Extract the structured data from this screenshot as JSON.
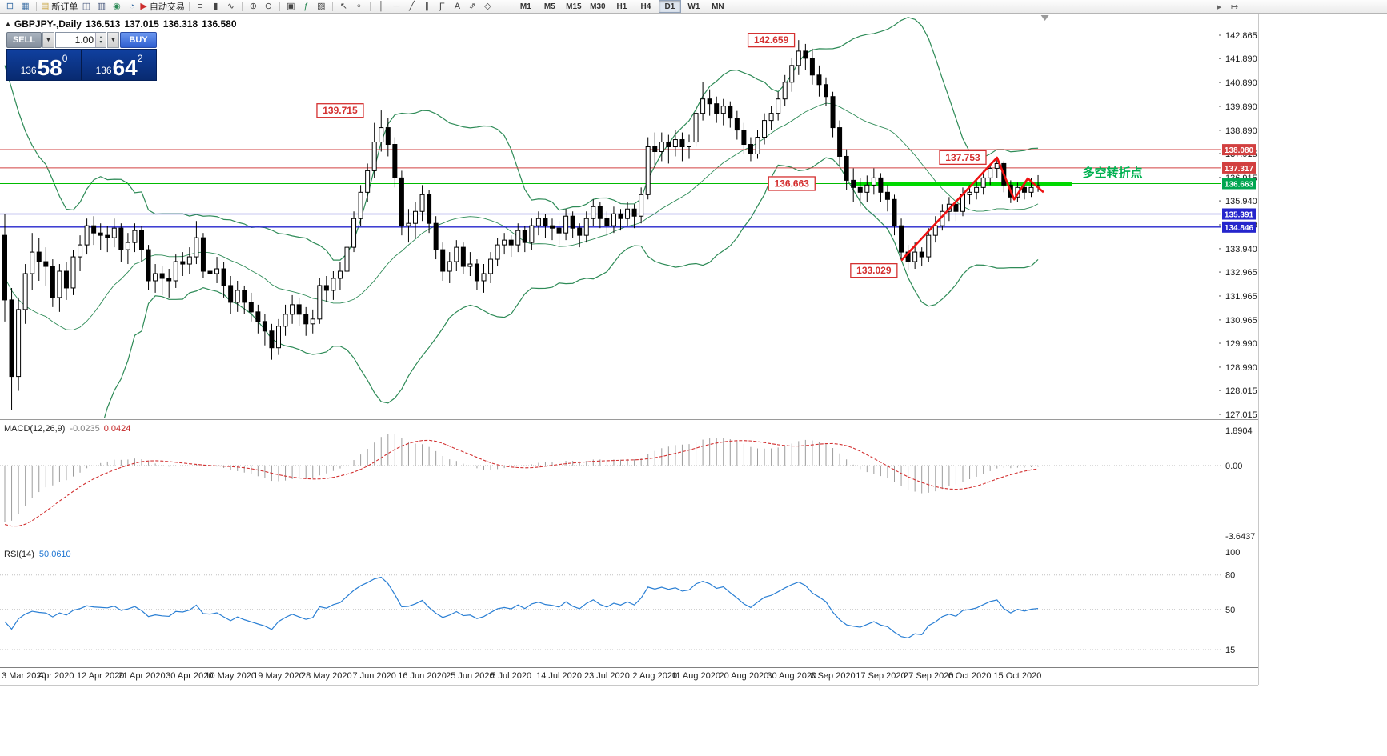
{
  "toolbar": {
    "items": [
      {
        "name": "new-chart-icon",
        "glyph": "⊞",
        "color": "#3a6ea5"
      },
      {
        "name": "chart-profiles-icon",
        "glyph": "▦",
        "color": "#3a6ea5"
      },
      {
        "sep": true
      },
      {
        "name": "new-order-button",
        "glyph": "▤",
        "color": "#c8a23c",
        "label": "新订单"
      },
      {
        "name": "market-watch-icon",
        "glyph": "◫",
        "color": "#44557a"
      },
      {
        "name": "data-window-icon",
        "glyph": "▥",
        "color": "#44557a"
      },
      {
        "name": "expert-advisors-icon",
        "glyph": "◉",
        "color": "#2e8b57"
      },
      {
        "name": "options-icon",
        "glyph": "◔",
        "color": "#3a6ea5"
      },
      {
        "name": "autotrading-button",
        "glyph": "▶",
        "color": "#cc2b2b",
        "label": "自动交易"
      },
      {
        "sep": true
      },
      {
        "name": "bar-chart-icon",
        "glyph": "≡",
        "color": "#444444"
      },
      {
        "name": "candlestick-chart-icon",
        "glyph": "▮",
        "color": "#444444"
      },
      {
        "name": "line-chart-icon",
        "glyph": "∿",
        "color": "#444444"
      },
      {
        "sep": true
      },
      {
        "name": "zoom-in-icon",
        "glyph": "⊕",
        "color": "#444444"
      },
      {
        "name": "zoom-out-icon",
        "glyph": "⊖",
        "color": "#444444"
      },
      {
        "sep": true
      },
      {
        "name": "tile-windows-icon",
        "glyph": "▣",
        "color": "#444444"
      },
      {
        "name": "indicators-icon",
        "glyph": "ƒ",
        "color": "#2e8b57"
      },
      {
        "name": "templates-icon",
        "glyph": "▨",
        "color": "#444444"
      },
      {
        "sep": true
      },
      {
        "name": "cursor-icon",
        "glyph": "↖",
        "color": "#444444"
      },
      {
        "name": "crosshair-icon",
        "glyph": "⌖",
        "color": "#444444"
      },
      {
        "sep": true
      },
      {
        "name": "vertical-line-icon",
        "glyph": "│",
        "color": "#444444"
      },
      {
        "name": "horizontal-line-icon",
        "glyph": "─",
        "color": "#444444"
      },
      {
        "name": "trendline-icon",
        "glyph": "╱",
        "color": "#444444"
      },
      {
        "name": "equidistant-channel-icon",
        "glyph": "∥",
        "color": "#444444"
      },
      {
        "name": "fibonacci-icon",
        "glyph": "Ƒ",
        "color": "#444444"
      },
      {
        "name": "text-icon",
        "glyph": "A",
        "color": "#444444"
      },
      {
        "name": "arrow-icon",
        "glyph": "⇗",
        "color": "#444444"
      },
      {
        "name": "shapes-icon",
        "glyph": "◇",
        "color": "#444444"
      },
      {
        "sep": true
      }
    ],
    "timeframes": [
      "M1",
      "M5",
      "M15",
      "M30",
      "H1",
      "H4",
      "D1",
      "W1",
      "MN"
    ],
    "active_timeframe": "D1",
    "right_items": [
      {
        "name": "auto-scroll-icon",
        "glyph": "▸",
        "color": "#666666"
      },
      {
        "name": "chart-shift-icon",
        "glyph": "↦",
        "color": "#666666"
      }
    ]
  },
  "chart_header": {
    "symbol_period": "GBPJPY-,Daily",
    "open": "136.513",
    "high": "137.015",
    "low": "136.318",
    "close": "136.580"
  },
  "one_click": {
    "sell_label": "SELL",
    "buy_label": "BUY",
    "lot": "1.00",
    "sell_small": "136",
    "sell_big": "58",
    "sell_sup": "0",
    "buy_small": "136",
    "buy_big": "64",
    "buy_sup": "2"
  },
  "indicators": {
    "macd_label": "MACD(12,26,9)",
    "macd_value": "-0.0235",
    "macd_signal_value": "0.0424",
    "rsi_label": "RSI(14)",
    "rsi_value": "50.0610"
  },
  "chart_data": {
    "type": "candlestick",
    "symbol": "GBPJPY",
    "period": "Daily",
    "styles": {
      "band_color": "#2e8b57",
      "trend_color": "#ee1111",
      "annotation_color": "#d43030",
      "macd_hist_color": "#9c9c9c",
      "macd_signal_color": "#d23030",
      "rsi_line_color": "#2a7fd4"
    },
    "y_axis_ticks": [
      "142.865",
      "141.890",
      "140.890",
      "139.890",
      "138.890",
      "137.915",
      "136.915",
      "135.940",
      "134.940",
      "133.940",
      "132.965",
      "131.965",
      "130.965",
      "129.990",
      "128.990",
      "128.015",
      "127.015"
    ],
    "price_levels": [
      {
        "label": "138.080",
        "price": 138.08,
        "color": "#d24040",
        "box": "#d24040",
        "width": 1.3
      },
      {
        "label": "137.317",
        "price": 137.317,
        "color": "#d24040",
        "box": "#d24040",
        "width": 1
      },
      {
        "label": "136.663",
        "price": 136.663,
        "color": "#00bb00",
        "box": "#00a650",
        "width": 1
      },
      {
        "label": "135.391",
        "price": 135.391,
        "color": "#2525cc",
        "box": "#2525cc",
        "width": 1.3
      },
      {
        "label": "134.846",
        "price": 134.846,
        "color": "#2525cc",
        "box": "#2525cc",
        "width": 1.3
      }
    ],
    "green_segment": {
      "price": 136.663,
      "from_idx": 124,
      "to_idx": 156,
      "color": "#00d800",
      "width": 5
    },
    "annotations": [
      {
        "text": "139.715",
        "idx": 49,
        "price": 139.715
      },
      {
        "text": "142.659",
        "idx": 112,
        "price": 142.659
      },
      {
        "text": "136.663",
        "idx": 115,
        "price": 136.663
      },
      {
        "text": "133.029",
        "idx": 127,
        "price": 133.029
      },
      {
        "text": "137.753",
        "idx": 140,
        "price": 137.753
      }
    ],
    "trend_polyline": [
      [
        131,
        133.45
      ],
      [
        145,
        137.75
      ],
      [
        147.5,
        136.0
      ],
      [
        149.5,
        136.88
      ],
      [
        151.8,
        136.3
      ]
    ],
    "cn_note": {
      "text": "多空转折点",
      "idx": 157.5,
      "price": 136.95,
      "color": "#00b050"
    },
    "shift_marker_idx": 152,
    "macd_axis": {
      "max": 1.8904,
      "min": -3.6437,
      "max_label": "1.8904",
      "zero_label": "0.00",
      "min_label": "-3.6437"
    },
    "rsi_axis": {
      "labels": [
        "100",
        "80",
        "50",
        "15"
      ],
      "levels": [
        80,
        50,
        15
      ]
    },
    "date_labels": [
      [
        0,
        "3 Mar 2020"
      ],
      [
        7,
        "1 Apr 2020"
      ],
      [
        14,
        "12 Apr 2020"
      ],
      [
        20,
        "21 Apr 2020"
      ],
      [
        27,
        "30 Apr 2020"
      ],
      [
        33,
        "10 May 2020"
      ],
      [
        40,
        "19 May 2020"
      ],
      [
        47,
        "28 May 2020"
      ],
      [
        54,
        "7 Jun 2020"
      ],
      [
        61,
        "16 Jun 2020"
      ],
      [
        68,
        "25 Jun 2020"
      ],
      [
        74,
        "5 Jul 2020"
      ],
      [
        81,
        "14 Jul 2020"
      ],
      [
        88,
        "23 Jul 2020"
      ],
      [
        95,
        "2 Aug 2020"
      ],
      [
        101,
        "11 Aug 2020"
      ],
      [
        108,
        "20 Aug 2020"
      ],
      [
        115,
        "30 Aug 2020"
      ],
      [
        121,
        "8 Sep 2020"
      ],
      [
        128,
        "17 Sep 2020"
      ],
      [
        135,
        "27 Sep 2020"
      ],
      [
        141,
        "6 Oct 2020"
      ],
      [
        148,
        "15 Oct 2020"
      ]
    ],
    "prehistory_closes": [
      140.0,
      139.6,
      139.0,
      138.2,
      137.4,
      136.4,
      135.4,
      136.2,
      136.6,
      135.4,
      133.8,
      131.8,
      129.8,
      128.0,
      126.6,
      126.0,
      127.5,
      129.0,
      128.3,
      128.0
    ],
    "candles": [
      [
        134.5,
        135.4,
        130.9,
        131.8
      ],
      [
        131.8,
        132.3,
        127.2,
        128.6
      ],
      [
        128.6,
        131.9,
        128.0,
        131.4
      ],
      [
        131.4,
        133.3,
        130.8,
        132.9
      ],
      [
        132.9,
        134.6,
        132.2,
        133.8
      ],
      [
        133.8,
        134.4,
        132.6,
        133.4
      ],
      [
        133.4,
        134.0,
        132.4,
        133.2
      ],
      [
        133.2,
        133.5,
        131.5,
        131.9
      ],
      [
        131.9,
        133.3,
        131.3,
        133.0
      ],
      [
        133.0,
        133.4,
        131.8,
        132.3
      ],
      [
        132.3,
        133.9,
        132.0,
        133.6
      ],
      [
        133.6,
        134.5,
        133.0,
        134.1
      ],
      [
        134.1,
        135.2,
        133.7,
        134.9
      ],
      [
        134.9,
        135.3,
        134.1,
        134.6
      ],
      [
        134.6,
        135.0,
        133.9,
        134.5
      ],
      [
        134.5,
        134.9,
        133.8,
        134.4
      ],
      [
        134.4,
        135.2,
        134.0,
        134.8
      ],
      [
        134.8,
        135.0,
        133.4,
        133.9
      ],
      [
        133.9,
        134.6,
        133.3,
        134.2
      ],
      [
        134.2,
        135.0,
        133.8,
        134.7
      ],
      [
        134.7,
        134.9,
        133.4,
        133.9
      ],
      [
        133.9,
        134.1,
        132.2,
        132.6
      ],
      [
        132.6,
        133.3,
        132.1,
        132.9
      ],
      [
        132.9,
        133.2,
        132.0,
        132.7
      ],
      [
        132.7,
        133.1,
        131.9,
        132.6
      ],
      [
        132.6,
        133.7,
        132.3,
        133.4
      ],
      [
        133.4,
        133.8,
        132.8,
        133.3
      ],
      [
        133.3,
        134.0,
        132.9,
        133.6
      ],
      [
        133.6,
        135.1,
        133.3,
        134.4
      ],
      [
        134.4,
        134.6,
        132.7,
        133.0
      ],
      [
        133.0,
        133.5,
        132.2,
        132.9
      ],
      [
        132.9,
        133.6,
        132.5,
        133.1
      ],
      [
        133.1,
        133.4,
        131.9,
        132.4
      ],
      [
        132.4,
        132.8,
        131.2,
        131.7
      ],
      [
        131.7,
        132.6,
        131.3,
        132.2
      ],
      [
        132.2,
        132.4,
        131.2,
        131.7
      ],
      [
        131.7,
        132.1,
        130.9,
        131.3
      ],
      [
        131.3,
        131.6,
        130.4,
        130.9
      ],
      [
        130.9,
        131.2,
        129.9,
        130.5
      ],
      [
        130.5,
        130.8,
        129.3,
        129.8
      ],
      [
        129.8,
        131.0,
        129.5,
        130.7
      ],
      [
        130.7,
        131.6,
        130.3,
        131.2
      ],
      [
        131.2,
        132.0,
        130.8,
        131.6
      ],
      [
        131.6,
        131.9,
        130.7,
        131.2
      ],
      [
        131.2,
        131.5,
        130.3,
        130.8
      ],
      [
        130.8,
        131.4,
        130.4,
        131.0
      ],
      [
        131.0,
        132.7,
        130.8,
        132.4
      ],
      [
        132.4,
        132.8,
        131.7,
        132.2
      ],
      [
        132.2,
        133.0,
        131.8,
        132.7
      ],
      [
        132.7,
        133.4,
        132.2,
        133.0
      ],
      [
        133.0,
        134.3,
        132.8,
        134.0
      ],
      [
        134.0,
        135.5,
        133.8,
        135.2
      ],
      [
        135.2,
        136.6,
        134.9,
        136.3
      ],
      [
        136.3,
        137.5,
        135.9,
        137.2
      ],
      [
        137.2,
        139.2,
        136.9,
        138.4
      ],
      [
        138.4,
        139.72,
        138.0,
        139.0
      ],
      [
        139.0,
        139.4,
        137.8,
        138.3
      ],
      [
        138.3,
        138.6,
        136.5,
        136.9
      ],
      [
        136.9,
        137.2,
        134.5,
        134.9
      ],
      [
        134.9,
        135.6,
        134.2,
        135.0
      ],
      [
        135.0,
        135.9,
        134.4,
        135.5
      ],
      [
        135.5,
        136.6,
        135.1,
        136.2
      ],
      [
        136.2,
        136.4,
        134.6,
        135.0
      ],
      [
        135.0,
        135.3,
        133.5,
        133.9
      ],
      [
        133.9,
        134.2,
        132.6,
        133.0
      ],
      [
        133.0,
        133.8,
        132.5,
        133.4
      ],
      [
        133.4,
        134.3,
        133.0,
        134.0
      ],
      [
        134.0,
        134.2,
        132.9,
        133.2
      ],
      [
        133.2,
        133.8,
        132.8,
        133.3
      ],
      [
        133.3,
        133.5,
        132.2,
        132.6
      ],
      [
        132.6,
        133.3,
        132.1,
        132.9
      ],
      [
        132.9,
        133.8,
        132.5,
        133.5
      ],
      [
        133.5,
        134.4,
        133.2,
        134.1
      ],
      [
        134.1,
        134.6,
        133.7,
        134.3
      ],
      [
        134.3,
        134.5,
        133.6,
        134.1
      ],
      [
        134.1,
        135.0,
        133.8,
        134.7
      ],
      [
        134.7,
        134.9,
        133.8,
        134.2
      ],
      [
        134.2,
        135.2,
        133.9,
        134.9
      ],
      [
        134.9,
        135.5,
        134.5,
        135.2
      ],
      [
        135.2,
        135.4,
        134.4,
        134.9
      ],
      [
        134.9,
        135.2,
        134.3,
        134.8
      ],
      [
        134.8,
        135.1,
        134.1,
        134.6
      ],
      [
        134.6,
        135.6,
        134.3,
        135.3
      ],
      [
        135.3,
        135.5,
        134.4,
        134.8
      ],
      [
        134.8,
        135.0,
        134.0,
        134.5
      ],
      [
        134.5,
        135.5,
        134.2,
        135.2
      ],
      [
        135.2,
        136.0,
        134.9,
        135.7
      ],
      [
        135.7,
        135.9,
        134.8,
        135.2
      ],
      [
        135.2,
        135.5,
        134.5,
        134.9
      ],
      [
        134.9,
        135.7,
        134.6,
        135.4
      ],
      [
        135.4,
        135.6,
        134.7,
        135.2
      ],
      [
        135.2,
        135.9,
        134.9,
        135.6
      ],
      [
        135.6,
        135.8,
        134.8,
        135.3
      ],
      [
        135.3,
        136.5,
        135.0,
        136.2
      ],
      [
        136.2,
        138.6,
        136.0,
        138.2
      ],
      [
        138.2,
        138.8,
        137.3,
        138.0
      ],
      [
        138.0,
        138.8,
        137.6,
        138.4
      ],
      [
        138.4,
        138.7,
        137.5,
        138.2
      ],
      [
        138.2,
        138.9,
        137.8,
        138.5
      ],
      [
        138.5,
        138.8,
        137.6,
        138.2
      ],
      [
        138.2,
        138.7,
        137.7,
        138.4
      ],
      [
        138.4,
        139.9,
        138.2,
        139.6
      ],
      [
        139.6,
        140.9,
        139.3,
        140.2
      ],
      [
        140.2,
        140.6,
        139.5,
        140.0
      ],
      [
        140.0,
        140.3,
        139.2,
        139.6
      ],
      [
        139.6,
        140.2,
        139.1,
        139.9
      ],
      [
        139.9,
        140.1,
        139.0,
        139.4
      ],
      [
        139.4,
        139.7,
        138.5,
        138.9
      ],
      [
        138.9,
        139.2,
        137.9,
        138.3
      ],
      [
        138.3,
        138.6,
        137.6,
        137.9
      ],
      [
        137.9,
        138.9,
        137.7,
        138.6
      ],
      [
        138.6,
        139.6,
        138.3,
        139.3
      ],
      [
        139.3,
        139.9,
        138.9,
        139.6
      ],
      [
        139.6,
        140.5,
        139.3,
        140.2
      ],
      [
        140.2,
        141.2,
        139.9,
        140.9
      ],
      [
        140.9,
        141.9,
        140.5,
        141.6
      ],
      [
        141.6,
        142.66,
        141.2,
        142.2
      ],
      [
        142.2,
        142.5,
        141.4,
        141.9
      ],
      [
        141.9,
        142.3,
        140.8,
        141.2
      ],
      [
        141.2,
        141.6,
        140.3,
        140.8
      ],
      [
        140.8,
        141.1,
        139.9,
        140.3
      ],
      [
        140.3,
        140.5,
        138.6,
        139.0
      ],
      [
        139.0,
        139.3,
        137.4,
        137.8
      ],
      [
        137.8,
        138.1,
        136.4,
        136.8
      ],
      [
        136.8,
        137.3,
        135.9,
        136.5
      ],
      [
        136.5,
        136.9,
        135.7,
        136.3
      ],
      [
        136.3,
        137.0,
        135.9,
        136.6
      ],
      [
        136.6,
        137.3,
        136.2,
        136.9
      ],
      [
        136.9,
        137.1,
        135.9,
        136.3
      ],
      [
        136.3,
        136.6,
        135.5,
        136.0
      ],
      [
        136.0,
        136.2,
        134.5,
        134.9
      ],
      [
        134.9,
        135.2,
        133.5,
        133.8
      ],
      [
        133.8,
        134.1,
        133.03,
        133.4
      ],
      [
        133.4,
        134.2,
        133.1,
        133.8
      ],
      [
        133.8,
        134.0,
        133.2,
        133.6
      ],
      [
        133.6,
        134.8,
        133.4,
        134.5
      ],
      [
        134.5,
        135.3,
        134.2,
        134.9
      ],
      [
        134.9,
        135.8,
        134.7,
        135.5
      ],
      [
        135.5,
        136.1,
        135.1,
        135.8
      ],
      [
        135.8,
        136.0,
        135.1,
        135.5
      ],
      [
        135.5,
        136.5,
        135.3,
        136.2
      ],
      [
        136.2,
        136.6,
        135.8,
        136.3
      ],
      [
        136.3,
        136.8,
        136.0,
        136.5
      ],
      [
        136.5,
        137.2,
        136.2,
        136.9
      ],
      [
        136.9,
        137.5,
        136.6,
        137.3
      ],
      [
        137.3,
        137.753,
        136.9,
        137.5
      ],
      [
        137.5,
        137.6,
        136.3,
        136.6
      ],
      [
        136.6,
        136.8,
        135.85,
        136.1
      ],
      [
        136.1,
        136.7,
        135.9,
        136.5
      ],
      [
        136.5,
        136.7,
        136.0,
        136.3
      ],
      [
        136.3,
        136.9,
        136.1,
        136.5
      ],
      [
        136.513,
        137.015,
        136.318,
        136.58
      ]
    ]
  }
}
